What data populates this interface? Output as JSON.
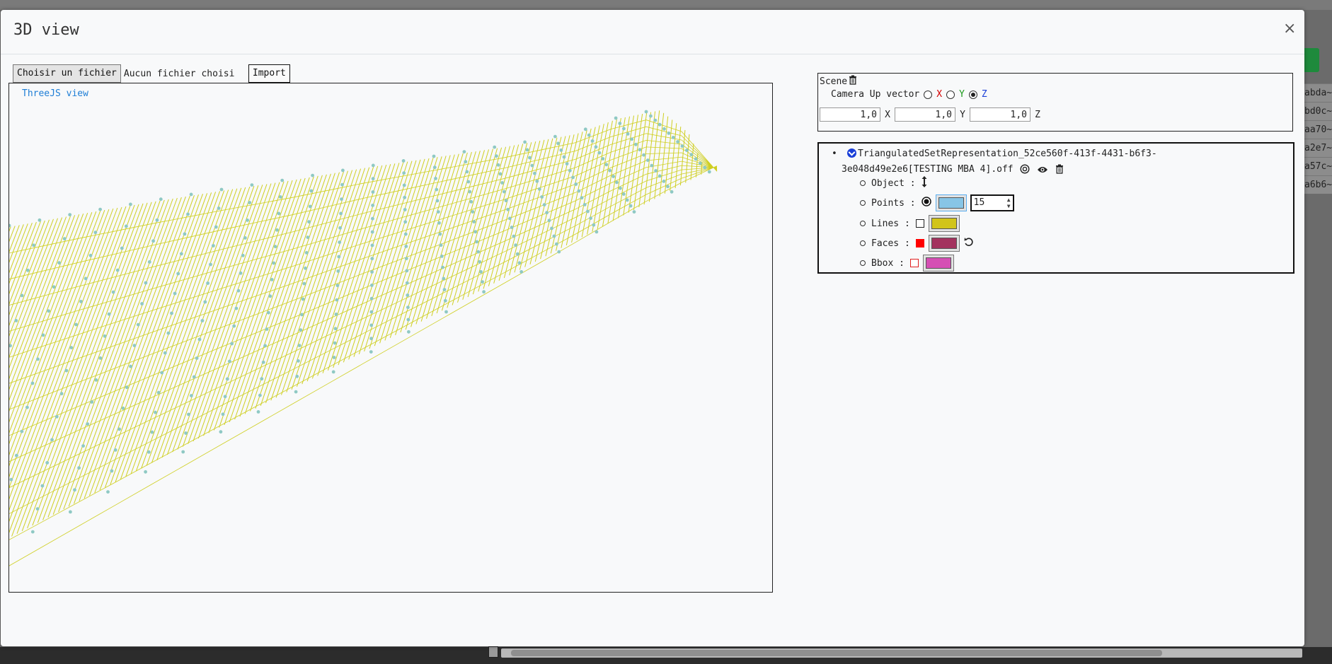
{
  "modal": {
    "title": "3D view",
    "close_symbol": "×"
  },
  "file": {
    "choose_label": "Choisir un fichier",
    "no_file_label": "Aucun fichier choisi",
    "import_label": "Import"
  },
  "viewer": {
    "label": "ThreeJS view",
    "mesh_line_color": "#cfcf22",
    "point_color": "#8fc9c4"
  },
  "scene": {
    "title": "Scene",
    "camera_up_label": "Camera Up vector",
    "axes": [
      "X",
      "Y",
      "Z"
    ],
    "selected_axis": "Z",
    "vector_values": [
      "1,0",
      "1,0",
      "1,0"
    ],
    "vector_labels": [
      "X",
      "Y",
      "Z"
    ]
  },
  "object": {
    "name_line1": "TriangulatedSetRepresentation_52ce560f-413f-4431-b6f3-",
    "name_line2": "3e048d49e2e6[TESTING MBA 4].off",
    "props": {
      "object_label": "Object :",
      "points_label": "Points :",
      "points_color": "#87c5e6",
      "points_size": "15",
      "lines_label": "Lines :",
      "lines_color": "#d1c41a",
      "faces_label": "Faces :",
      "faces_color": "#a3325e",
      "bbox_label": "Bbox :",
      "bbox_color": "#d54fb4"
    }
  },
  "background": {
    "list_items": [
      "abda~",
      "bd0c~",
      "aa70~",
      "a2e7~",
      "a57c~",
      "a6b6~"
    ]
  }
}
